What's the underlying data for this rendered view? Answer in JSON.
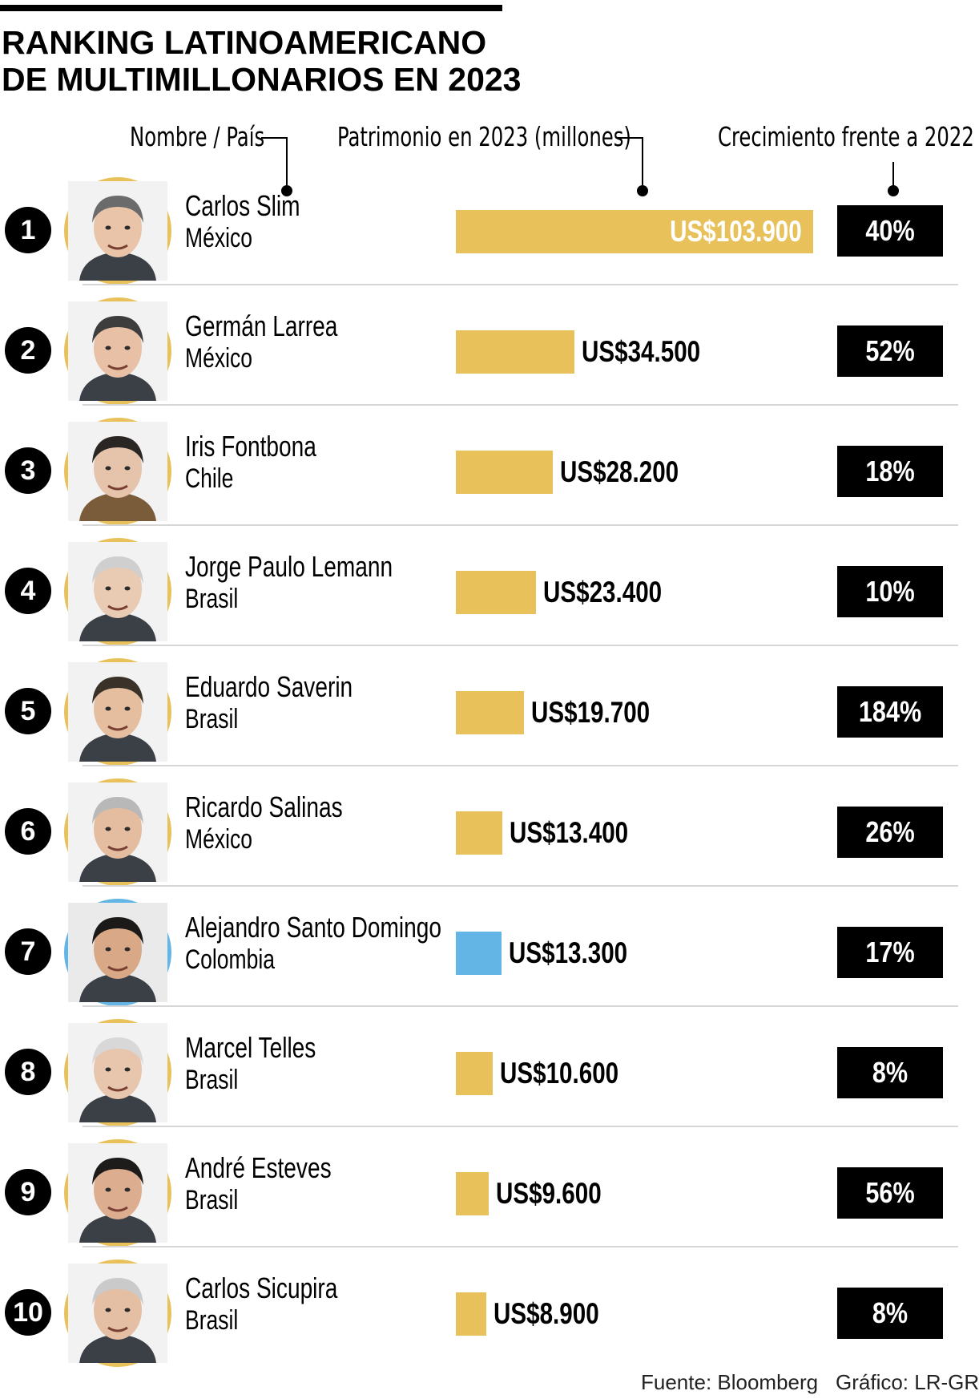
{
  "title": {
    "line1": "RANKING LATINOAMERICANO",
    "line2": "DE MULTIMILLONARIOS EN 2023"
  },
  "column_headers": {
    "name": "Nombre / País",
    "worth": "Patrimonio en 2023 (millones)",
    "growth": "Crecimiento frente a 2022"
  },
  "colors": {
    "bar": "#e8c15b",
    "highlight": "#62b5e5",
    "growth_box": "#000000"
  },
  "chart_data": {
    "type": "bar",
    "orientation": "horizontal",
    "unit": "US$ millones",
    "categories": [
      "Carlos Slim",
      "Germán Larrea",
      "Iris Fontbona",
      "Jorge Paulo Lemann",
      "Eduardo Saverin",
      "Ricardo Salinas",
      "Alejandro Santo Domingo",
      "Marcel Telles",
      "André Esteves",
      "Carlos Sicupira"
    ],
    "values": [
      103900,
      34500,
      28200,
      23400,
      19700,
      13400,
      13300,
      10600,
      9600,
      8900
    ],
    "xlim": [
      0,
      103900
    ],
    "rows": [
      {
        "rank": "1",
        "name": "Carlos Slim",
        "country": "México",
        "value": 103900,
        "label": "US$103.900",
        "growth": "40%",
        "highlight": false,
        "avatar_icon": "portrait-carlos-slim"
      },
      {
        "rank": "2",
        "name": "Germán Larrea",
        "country": "México",
        "value": 34500,
        "label": "US$34.500",
        "growth": "52%",
        "highlight": false,
        "avatar_icon": "portrait-german-larrea"
      },
      {
        "rank": "3",
        "name": "Iris Fontbona",
        "country": "Chile",
        "value": 28200,
        "label": "US$28.200",
        "growth": "18%",
        "highlight": false,
        "avatar_icon": "portrait-iris-fontbona"
      },
      {
        "rank": "4",
        "name": "Jorge Paulo Lemann",
        "country": "Brasil",
        "value": 23400,
        "label": "US$23.400",
        "growth": "10%",
        "highlight": false,
        "avatar_icon": "portrait-jorge-paulo-lemann"
      },
      {
        "rank": "5",
        "name": "Eduardo Saverin",
        "country": "Brasil",
        "value": 19700,
        "label": "US$19.700",
        "growth": "184%",
        "highlight": false,
        "avatar_icon": "portrait-eduardo-saverin"
      },
      {
        "rank": "6",
        "name": "Ricardo Salinas",
        "country": "México",
        "value": 13400,
        "label": "US$13.400",
        "growth": "26%",
        "highlight": false,
        "avatar_icon": "portrait-ricardo-salinas"
      },
      {
        "rank": "7",
        "name": "Alejandro Santo Domingo",
        "country": "Colombia",
        "value": 13300,
        "label": "US$13.300",
        "growth": "17%",
        "highlight": true,
        "avatar_icon": "portrait-alejandro-santo-domingo"
      },
      {
        "rank": "8",
        "name": "Marcel Telles",
        "country": "Brasil",
        "value": 10600,
        "label": "US$10.600",
        "growth": "8%",
        "highlight": false,
        "avatar_icon": "portrait-marcel-telles"
      },
      {
        "rank": "9",
        "name": "André Esteves",
        "country": "Brasil",
        "value": 9600,
        "label": "US$9.600",
        "growth": "56%",
        "highlight": false,
        "avatar_icon": "portrait-andre-esteves"
      },
      {
        "rank": "10",
        "name": "Carlos Sicupira",
        "country": "Brasil",
        "value": 8900,
        "label": "US$8.900",
        "growth": "8%",
        "highlight": false,
        "avatar_icon": "portrait-carlos-sicupira"
      }
    ]
  },
  "footer": {
    "source": "Fuente:  Bloomberg",
    "credit": "Gráfico: LR-GR"
  }
}
